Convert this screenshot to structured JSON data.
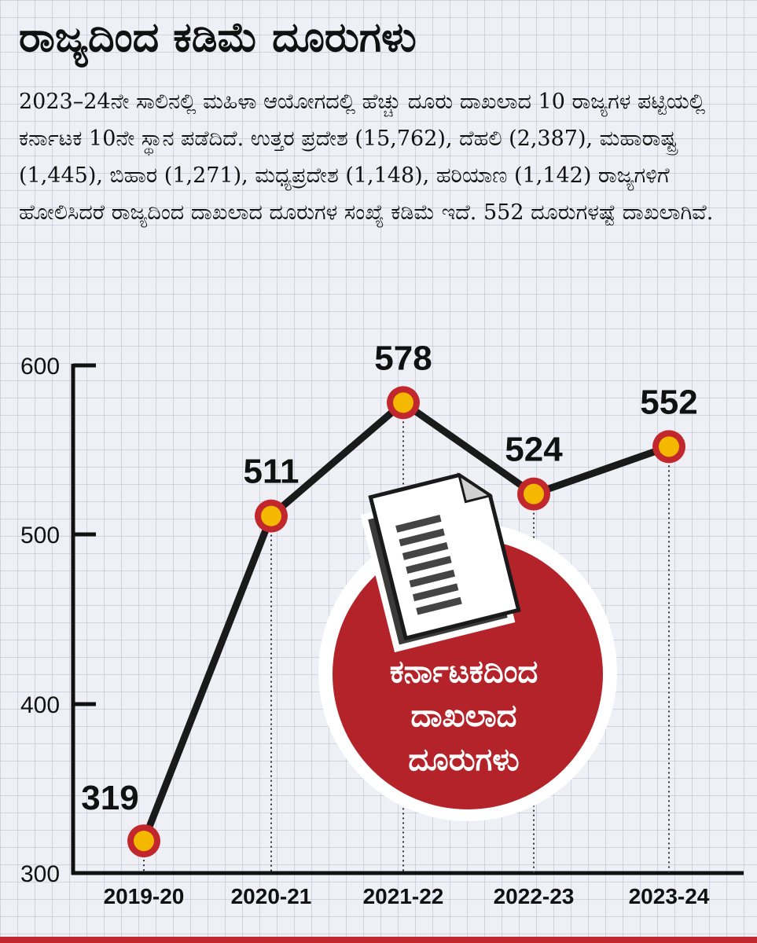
{
  "header": {
    "title": "ರಾಜ್ಯದಿಂದ ಕಡಿಮೆ ದೂರುಗಳು",
    "description": "2023–24ನೇ ಸಾಲಿನಲ್ಲಿ ಮಹಿಳಾ ಆಯೋಗದಲ್ಲಿ ಹೆಚ್ಚು ದೂರು ದಾಖಲಾದ 10 ರಾಜ್ಯಗಳ ಪಟ್ಟಿಯಲ್ಲಿ ಕರ್ನಾಟಕ 10ನೇ ಸ್ಥಾನ ಪಡೆದಿದೆ. ಉತ್ತರ ಪ್ರದೇಶ (15,762), ದೆಹಲಿ (2,387), ಮಹಾರಾಷ್ಟ್ರ (1,445), ಬಿಹಾರ (1,271), ಮಧ್ಯಪ್ರದೇಶ (1,148), ಹರಿಯಾಣ (1,142) ರಾಜ್ಯಗಳಿಗೆ ಹೋಲಿಸಿದರೆ ರಾಜ್ಯದಿಂದ ದಾಖಲಾದ ದೂರುಗಳ ಸಂಖ್ಯೆ ಕಡಿಮೆ ಇದೆ. 552 ದೂರುಗಳಷ್ಟೆ ದಾಖಲಾಗಿವೆ."
  },
  "badge": {
    "lines": [
      "ಕರ್ನಾಟಕದಿಂದ",
      "ದಾಖಲಾದ",
      "ದೂರುಗಳು"
    ],
    "icon": "document-icon"
  },
  "colors": {
    "line": "#1a1a1a",
    "marker_fill": "#f5b800",
    "marker_ring": "#c1272d",
    "badge": "#b5232a",
    "bottom_bar": "#c1272d"
  },
  "chart_data": {
    "type": "line",
    "categories": [
      "2019-20",
      "2020-21",
      "2021-22",
      "2022-23",
      "2023-24"
    ],
    "values": [
      319,
      511,
      578,
      524,
      552
    ],
    "data_labels": [
      "319",
      "511",
      "578",
      "524",
      "552"
    ],
    "yticks": [
      "600",
      "500",
      "400",
      "300"
    ],
    "ylim": [
      300,
      600
    ],
    "grid": false
  }
}
